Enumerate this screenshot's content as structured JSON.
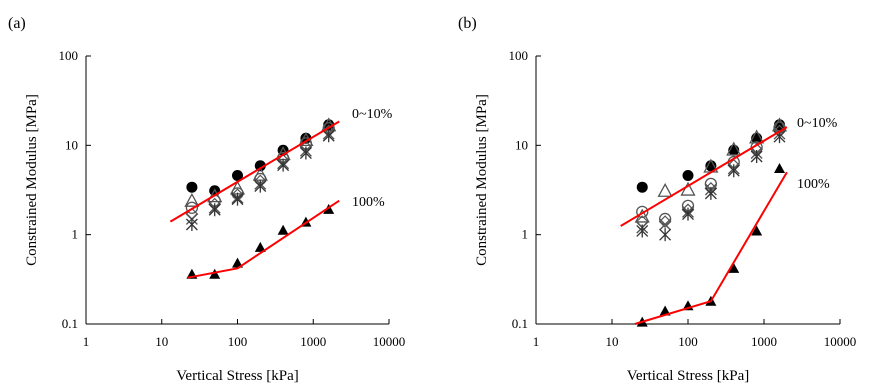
{
  "chart_data": [
    {
      "type": "scatter",
      "panel_label": "(a)",
      "xlabel": "Vertical Stress [kPa]",
      "ylabel": "Constrained Modulus [MPa]",
      "xscale": "log",
      "yscale": "log",
      "xlim": [
        1,
        10000
      ],
      "ylim": [
        0.1,
        100
      ],
      "xticks": [
        "1",
        "10",
        "100",
        "1000",
        "10000"
      ],
      "yticks": [
        "0.1",
        "1",
        "10",
        "100"
      ],
      "grid": false,
      "series": [
        {
          "marker": "filled-circle",
          "x": [
            25,
            50,
            100,
            200,
            400,
            800,
            1600
          ],
          "y": [
            3.4,
            3.1,
            4.6,
            5.9,
            8.8,
            12.0,
            17.0
          ]
        },
        {
          "marker": "open-triangle",
          "x": [
            25,
            50,
            100,
            200,
            400,
            800,
            1600
          ],
          "y": [
            2.4,
            2.7,
            3.3,
            4.7,
            8.0,
            11.5,
            16.8
          ]
        },
        {
          "marker": "open-circle",
          "x": [
            25,
            50,
            100,
            200,
            400,
            800,
            1600
          ],
          "y": [
            2.0,
            2.4,
            2.9,
            4.2,
            7.2,
            10.5,
            15.5
          ]
        },
        {
          "marker": "open-diamond",
          "x": [
            25,
            50,
            100,
            200,
            400,
            800,
            1600
          ],
          "y": [
            1.7,
            2.2,
            2.8,
            4.0,
            6.8,
            9.6,
            14.5
          ]
        },
        {
          "marker": "x-cross",
          "x": [
            25,
            50,
            100,
            200,
            400,
            800,
            1600
          ],
          "y": [
            1.5,
            2.0,
            2.6,
            3.7,
            6.3,
            8.7,
            13.5
          ]
        },
        {
          "marker": "asterisk",
          "x": [
            25,
            50,
            100,
            200,
            400,
            800,
            1600
          ],
          "y": [
            1.3,
            1.9,
            2.5,
            3.5,
            6.0,
            8.2,
            12.8
          ]
        },
        {
          "marker": "filled-triangle",
          "x": [
            25,
            50,
            100,
            200,
            400,
            800,
            1600
          ],
          "y": [
            0.36,
            0.36,
            0.48,
            0.72,
            1.12,
            1.38,
            1.92
          ]
        }
      ],
      "fit_lines": [
        {
          "label": "0~10%",
          "x": [
            13,
            2200
          ],
          "y": [
            1.4,
            18.5
          ],
          "color": "#ff0000"
        },
        {
          "label": "100%",
          "x": [
            22,
            100,
            2200
          ],
          "y": [
            0.33,
            0.42,
            2.4
          ],
          "color": "#ff0000"
        }
      ]
    },
    {
      "type": "scatter",
      "panel_label": "(b)",
      "xlabel": "Vertical Stress [kPa]",
      "ylabel": "Constrained Modulus [MPa]",
      "xscale": "log",
      "yscale": "log",
      "xlim": [
        1,
        10000
      ],
      "ylim": [
        0.1,
        100
      ],
      "xticks": [
        "1",
        "10",
        "100",
        "1000",
        "10000"
      ],
      "yticks": [
        "0.1",
        "1",
        "10",
        "100"
      ],
      "grid": false,
      "series": [
        {
          "marker": "filled-circle",
          "x": [
            25,
            100,
            200,
            400,
            800,
            1600
          ],
          "y": [
            3.4,
            4.6,
            5.9,
            8.8,
            12.0,
            17.0
          ]
        },
        {
          "marker": "open-triangle",
          "x": [
            25,
            50,
            100,
            200,
            400,
            800,
            1600
          ],
          "y": [
            1.6,
            3.1,
            3.2,
            5.8,
            9.0,
            12.3,
            16.8
          ]
        },
        {
          "marker": "open-circle",
          "x": [
            25,
            50,
            100,
            200,
            400,
            800,
            1600
          ],
          "y": [
            1.8,
            1.5,
            2.1,
            3.7,
            6.5,
            9.5,
            15.8
          ]
        },
        {
          "marker": "open-diamond",
          "x": [
            25,
            50,
            100,
            200,
            400,
            800,
            1600
          ],
          "y": [
            1.4,
            1.4,
            1.9,
            3.3,
            6.0,
            9.0,
            14.5
          ]
        },
        {
          "marker": "x-cross",
          "x": [
            25,
            50,
            100,
            200,
            400,
            800,
            1600
          ],
          "y": [
            1.2,
            1.3,
            1.8,
            3.2,
            5.5,
            8.2,
            13.5
          ]
        },
        {
          "marker": "asterisk",
          "x": [
            25,
            50,
            100,
            200,
            400,
            800,
            1600
          ],
          "y": [
            1.1,
            1.0,
            1.7,
            2.9,
            5.2,
            7.5,
            12.5
          ]
        },
        {
          "marker": "filled-triangle",
          "x": [
            25,
            50,
            100,
            200,
            400,
            800,
            1600
          ],
          "y": [
            0.105,
            0.14,
            0.16,
            0.18,
            0.42,
            1.1,
            5.5
          ]
        }
      ],
      "fit_lines": [
        {
          "label": "0~10%",
          "x": [
            13,
            2000
          ],
          "y": [
            1.25,
            16.0
          ],
          "color": "#ff0000"
        },
        {
          "label": "100%",
          "x": [
            20,
            200,
            2000
          ],
          "y": [
            0.1,
            0.18,
            5.0
          ],
          "color": "#ff0000"
        }
      ]
    }
  ]
}
